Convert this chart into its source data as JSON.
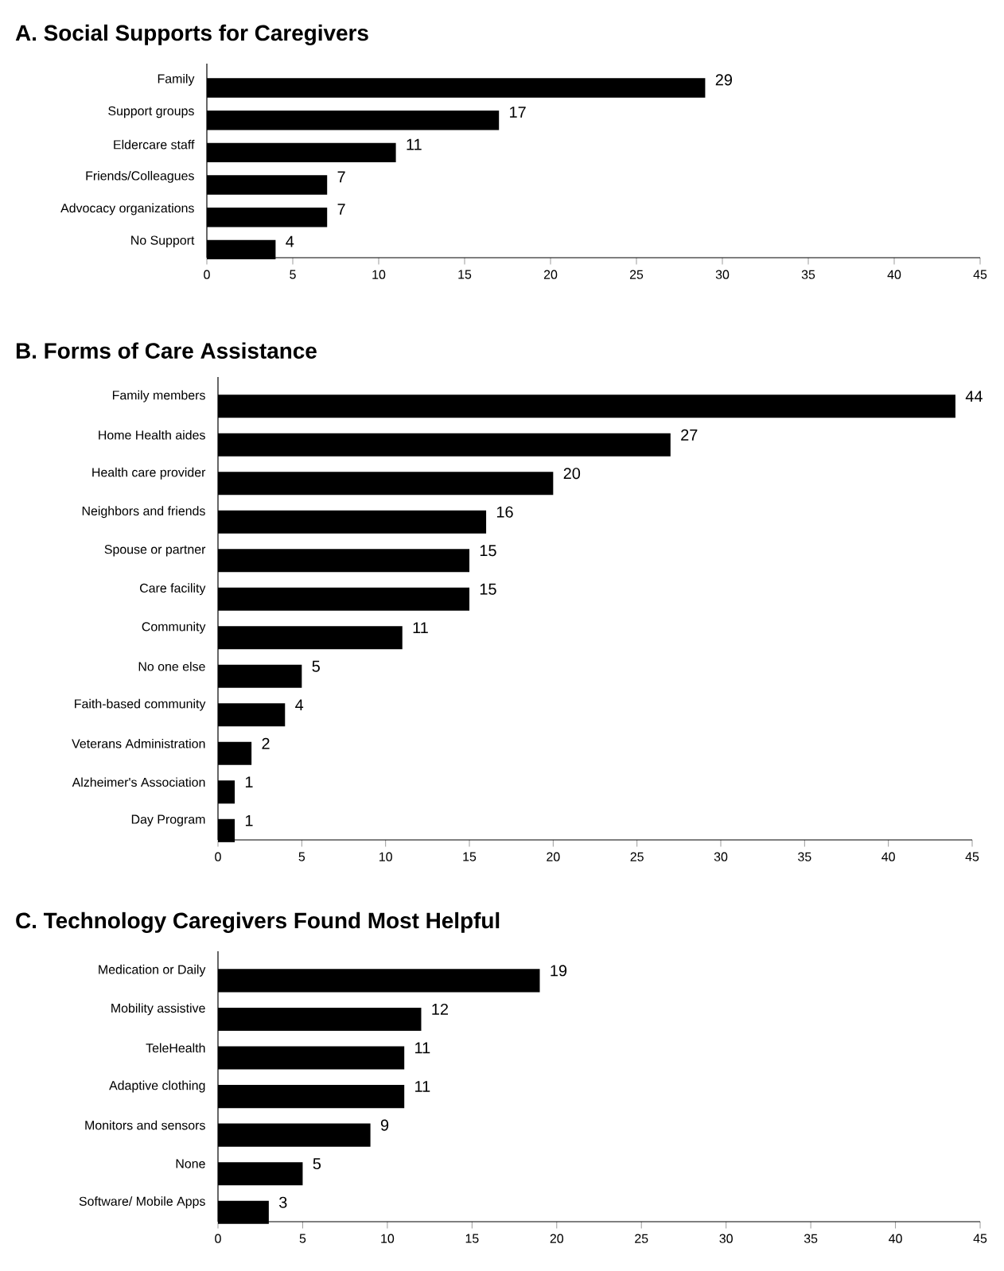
{
  "chart_data": [
    {
      "type": "bar",
      "orientation": "horizontal",
      "title": "A. Social Supports for Caregivers",
      "categories": [
        "Family",
        "Support groups",
        "Eldercare staff",
        "Friends/Colleagues",
        "Advocacy organizations",
        "No Support"
      ],
      "values": [
        29,
        17,
        11,
        7,
        7,
        4
      ],
      "color": "#000000",
      "xlim": [
        0,
        45
      ],
      "xticks": [
        0,
        5,
        10,
        15,
        20,
        25,
        30,
        35,
        40,
        45
      ],
      "data_labels": true
    },
    {
      "type": "bar",
      "orientation": "horizontal",
      "title": "B. Forms of Care Assistance",
      "categories": [
        "Family members",
        "Home Health aides",
        "Health care provider",
        "Neighbors and friends",
        "Spouse or partner",
        "Care facility",
        "Community",
        "No one else",
        "Faith-based community",
        "Veterans Administration",
        "Alzheimer's Association",
        "Day Program"
      ],
      "values": [
        44,
        27,
        20,
        16,
        15,
        15,
        11,
        5,
        4,
        2,
        1,
        1
      ],
      "color": "#000000",
      "xlim": [
        0,
        45
      ],
      "xticks": [
        0,
        5,
        10,
        15,
        20,
        25,
        30,
        35,
        40,
        45
      ],
      "data_labels": true
    },
    {
      "type": "bar",
      "orientation": "horizontal",
      "title": "C. Technology Caregivers Found Most Helpful",
      "categories": [
        "Medication or Daily",
        "Mobility assistive",
        "TeleHealth",
        "Adaptive clothing",
        "Monitors and sensors",
        "None",
        "Software/ Mobile Apps"
      ],
      "values": [
        19,
        12,
        11,
        11,
        9,
        5,
        3
      ],
      "color": "#000000",
      "xlim": [
        0,
        45
      ],
      "xticks": [
        0,
        5,
        10,
        15,
        20,
        25,
        30,
        35,
        40,
        45
      ],
      "data_labels": true
    }
  ]
}
